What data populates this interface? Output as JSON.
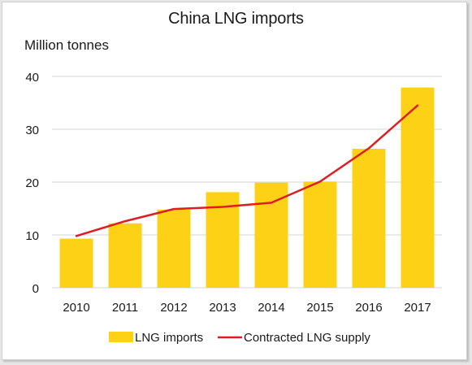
{
  "chart_data": {
    "type": "bar",
    "title": "China LNG imports",
    "ylabel": "Million tonnes",
    "xlabel": "",
    "categories": [
      "2010",
      "2011",
      "2012",
      "2013",
      "2014",
      "2015",
      "2016",
      "2017"
    ],
    "ylim": [
      0,
      40
    ],
    "yticks": [
      "0",
      "10",
      "20",
      "30",
      "40"
    ],
    "grid": "horizontal",
    "legend_position": "bottom",
    "series": [
      {
        "name": "LNG imports",
        "kind": "bar",
        "color": "#fcd116",
        "values": [
          9.3,
          12.2,
          14.8,
          18.1,
          19.9,
          20.1,
          26.3,
          37.9
        ]
      },
      {
        "name": "Contracted LNG supply",
        "kind": "line",
        "color": "#dd1d21",
        "values": [
          9.8,
          12.6,
          14.9,
          15.3,
          16.1,
          20.1,
          26.4,
          34.5
        ]
      }
    ]
  }
}
